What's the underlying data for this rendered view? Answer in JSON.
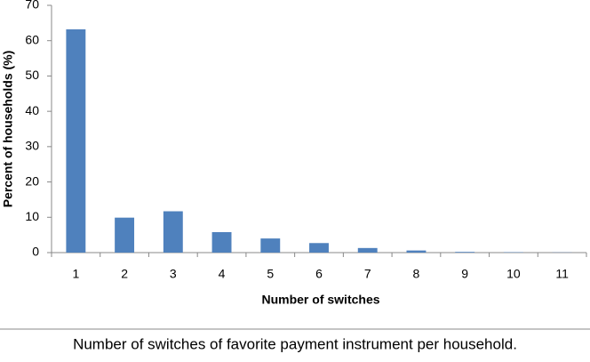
{
  "chart_data": {
    "type": "bar",
    "caption": "Number of switches of favorite payment instrument per household.",
    "xlabel": "Number of switches",
    "ylabel": "Percent of households (%)",
    "categories": [
      "1",
      "2",
      "3",
      "4",
      "5",
      "6",
      "7",
      "8",
      "9",
      "10",
      "11"
    ],
    "values": [
      63.2,
      9.9,
      11.7,
      5.8,
      4.0,
      2.7,
      1.3,
      0.6,
      0.2,
      0.1,
      0.05
    ],
    "color": "#4f81bd",
    "ylim": [
      0,
      70
    ],
    "yticks": [
      0,
      10,
      20,
      30,
      40,
      50,
      60,
      70
    ],
    "grid": false
  }
}
